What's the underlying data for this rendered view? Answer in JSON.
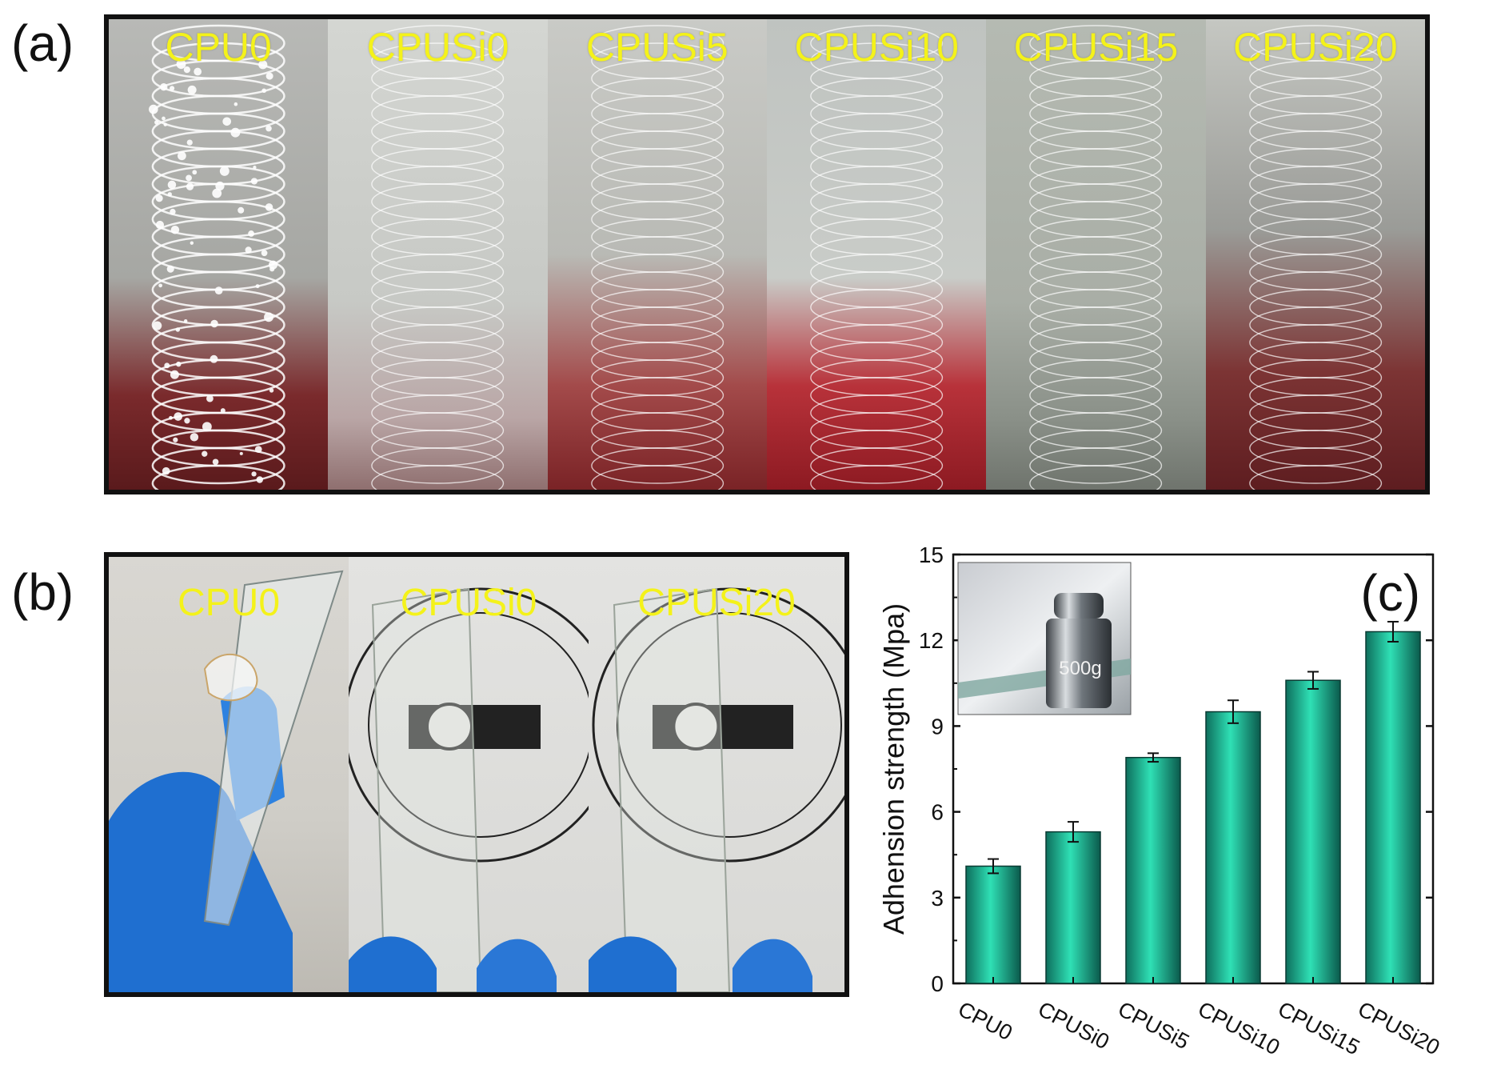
{
  "panels": {
    "a_letter": "(a)",
    "b_letter": "(b)",
    "c_letter": "(c)"
  },
  "panel_a_samples": [
    "CPU0",
    "CPUSi0",
    "CPUSi5",
    "CPUSi10",
    "CPUSi15",
    "CPUSi20"
  ],
  "panel_b_samples": [
    "CPU0",
    "CPUSi0",
    "CPUSi20"
  ],
  "inset": {
    "weight_label": "500g"
  },
  "colors": {
    "label_yellow": "#f4f21a",
    "bar_light": "#2fe0b5",
    "bar_dark": "#0e6f5d"
  },
  "chart_data": {
    "type": "bar",
    "categories": [
      "CPU0",
      "CPUSi0",
      "CPUSi5",
      "CPUSi10",
      "CPUSi15",
      "CPUSi20"
    ],
    "values": [
      4.1,
      5.3,
      7.9,
      9.5,
      10.6,
      12.3
    ],
    "errors": [
      0.25,
      0.35,
      0.15,
      0.4,
      0.3,
      0.35
    ],
    "title": "",
    "xlabel": "",
    "ylabel": "Adhension strength (Mpa)",
    "ylim": [
      0,
      15
    ],
    "yticks": [
      "0",
      "3",
      "6",
      "9",
      "12",
      "15"
    ],
    "grid": false
  }
}
